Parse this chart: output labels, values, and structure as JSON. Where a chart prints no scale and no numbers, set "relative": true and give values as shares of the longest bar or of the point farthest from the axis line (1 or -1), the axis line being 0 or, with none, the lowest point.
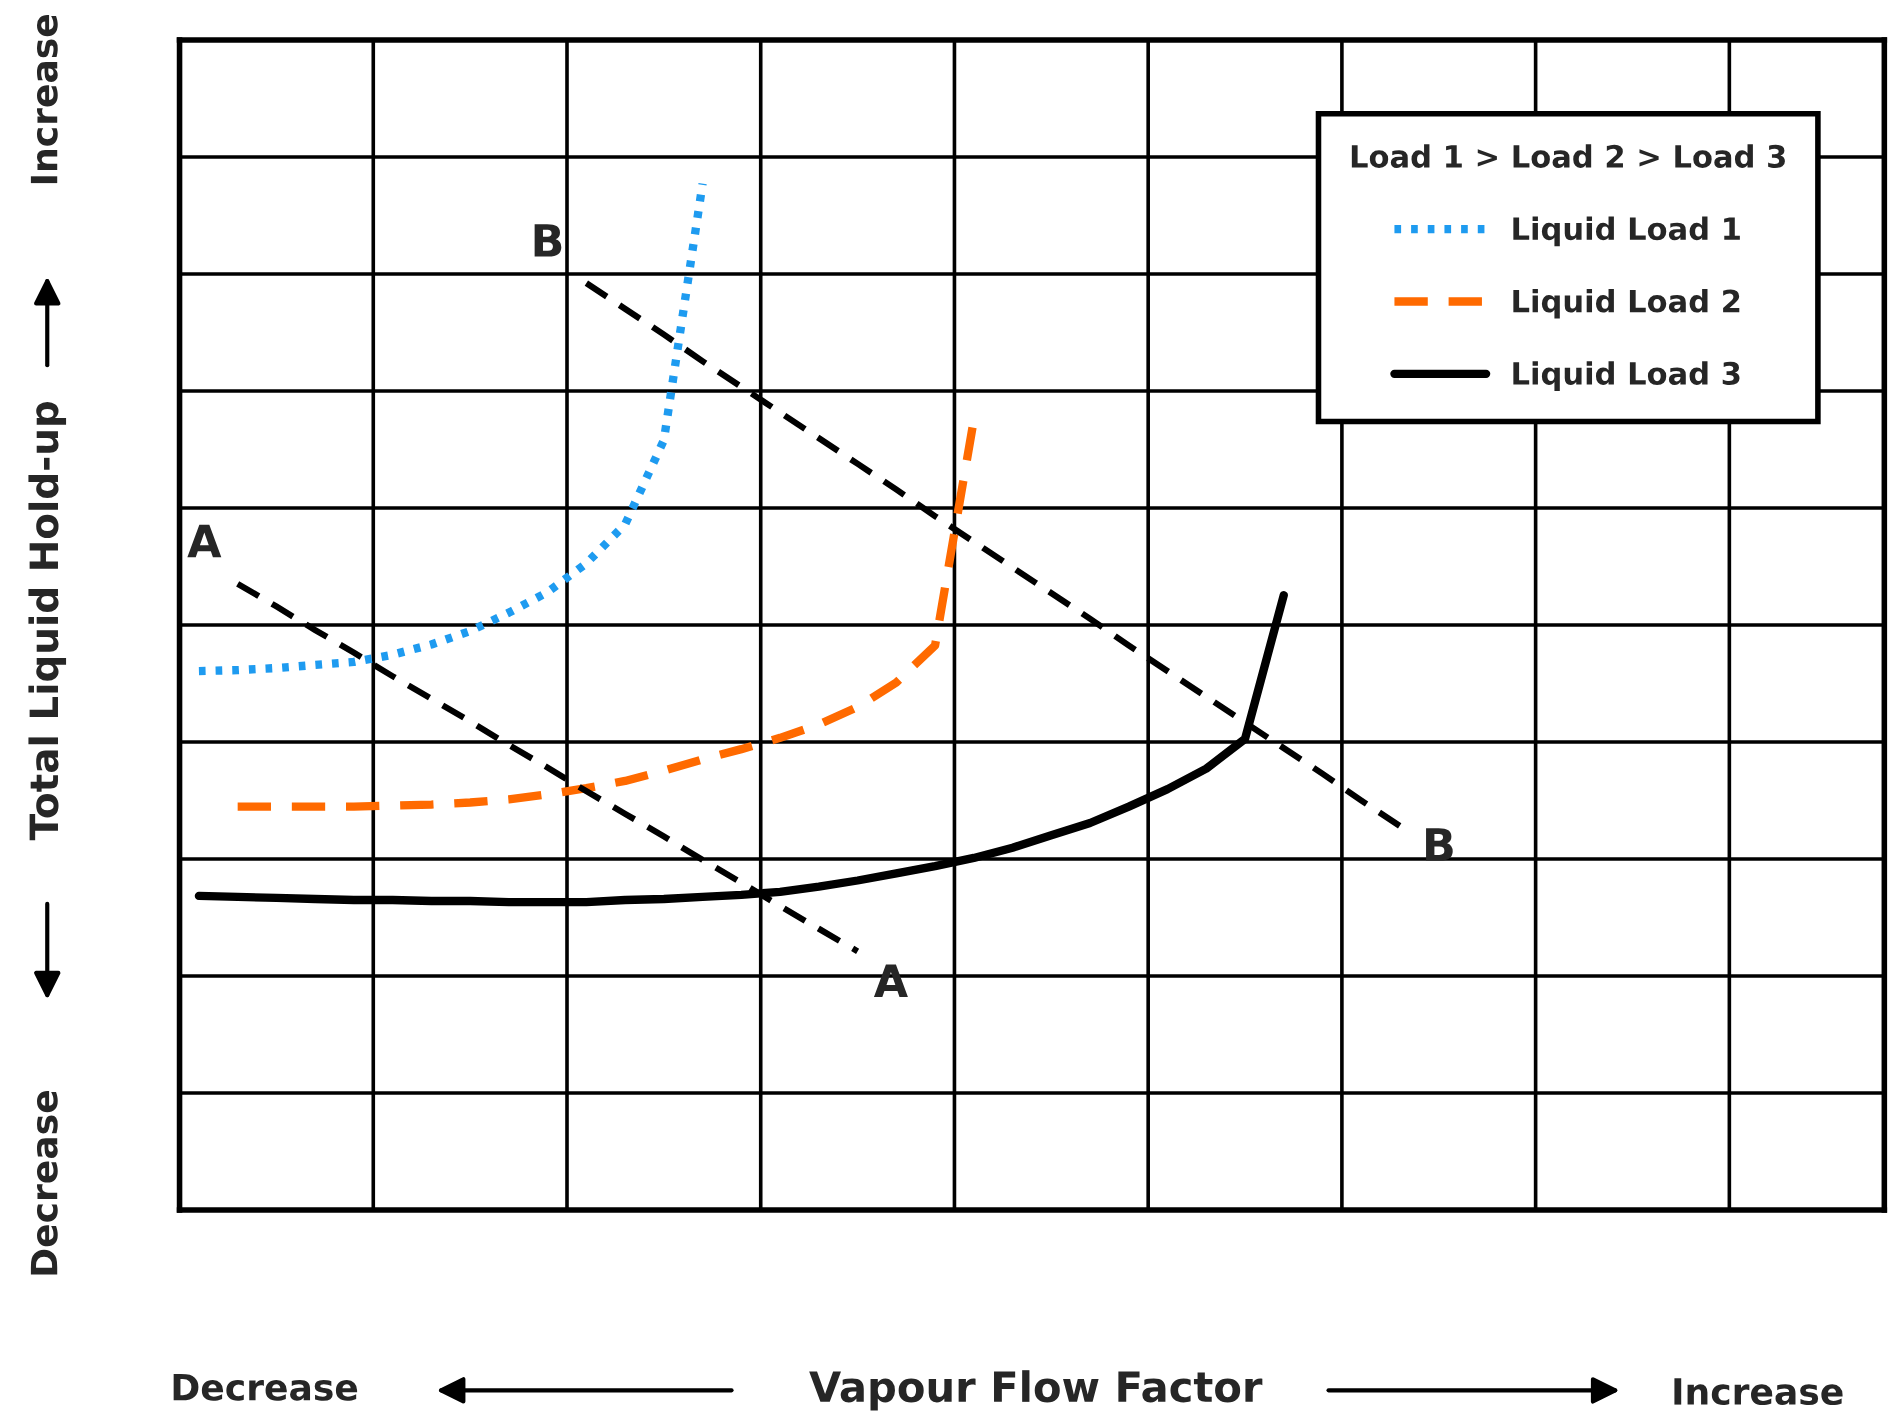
{
  "chart_data": {
    "type": "line",
    "relative": true,
    "xlabel": "Vapour Flow Factor",
    "ylabel": "Total Liquid Hold-up",
    "categories": [
      null,
      null,
      null,
      null,
      null,
      null,
      null,
      null,
      null,
      null,
      null,
      null,
      null,
      null,
      null,
      null,
      null,
      null,
      null,
      null,
      null,
      null,
      null,
      null,
      null,
      null,
      null,
      null,
      null,
      null,
      null,
      null,
      null,
      null,
      null,
      null,
      null,
      null,
      null,
      null,
      null,
      null,
      null,
      null
    ],
    "grid": true,
    "legend": "top right",
    "legend_title": "Load 1 > Load 2 > Load 3",
    "series": [
      {
        "name": "Liquid Load 1",
        "color": "#1e9bf0",
        "line_style": "dotted",
        "values": [
          0.525,
          0.526,
          0.528,
          0.531,
          0.534,
          0.541,
          0.551,
          0.564,
          0.582,
          0.602,
          0.63,
          0.668,
          0.75,
          1.0,
          null,
          null,
          null,
          null,
          null,
          null,
          null,
          null,
          null,
          null,
          null,
          null,
          null,
          null,
          null,
          null,
          null,
          null,
          null,
          null,
          null,
          null,
          null,
          null,
          null,
          null,
          null,
          null,
          null,
          null
        ]
      },
      {
        "name": "Liquid Load 2",
        "color": "#ff6a00",
        "line_style": "dashed",
        "values": [
          null,
          0.393,
          0.393,
          0.393,
          0.393,
          0.394,
          0.395,
          0.397,
          0.4,
          0.405,
          0.411,
          0.418,
          0.428,
          0.439,
          0.449,
          0.46,
          0.473,
          0.49,
          0.514,
          0.55,
          0.77,
          null,
          null,
          null,
          null,
          null,
          null,
          null,
          null,
          null,
          null,
          null,
          null,
          null,
          null,
          null,
          null,
          null,
          null,
          null,
          null,
          null,
          null,
          null
        ]
      },
      {
        "name": "Liquid Load 3",
        "color": "#000000",
        "line_style": "solid",
        "values": [
          0.306,
          0.305,
          0.304,
          0.303,
          0.302,
          0.302,
          0.301,
          0.301,
          0.3,
          0.3,
          0.3,
          0.302,
          0.303,
          0.305,
          0.307,
          0.31,
          0.315,
          0.321,
          0.328,
          0.335,
          0.343,
          0.353,
          0.365,
          0.377,
          0.393,
          0.41,
          0.43,
          0.459,
          0.599,
          null,
          null,
          null,
          null,
          null,
          null,
          null,
          null,
          null,
          null,
          null,
          null,
          null,
          null,
          null
        ]
      },
      {
        "color": "#000000",
        "line_style": "dashed",
        "values": [
          null,
          0.61,
          0.588,
          0.565,
          0.543,
          0.52,
          0.498,
          0.476,
          0.453,
          0.431,
          0.408,
          0.386,
          0.364,
          0.341,
          0.319,
          0.296,
          0.274,
          0.252,
          null,
          null,
          null,
          null,
          null,
          null,
          null,
          null,
          null,
          null,
          null,
          null,
          null,
          null,
          null,
          null,
          null,
          null,
          null,
          null,
          null,
          null,
          null,
          null,
          null,
          null
        ]
      },
      {
        "color": "#000000",
        "line_style": "dashed",
        "values": [
          null,
          null,
          null,
          null,
          null,
          null,
          null,
          null,
          null,
          null,
          0.903,
          0.878,
          0.853,
          0.827,
          0.802,
          0.777,
          0.752,
          0.727,
          0.702,
          0.676,
          0.651,
          0.626,
          0.601,
          0.576,
          0.55,
          0.525,
          0.5,
          0.475,
          0.45,
          0.425,
          0.399,
          0.374,
          null,
          null,
          null,
          null,
          null,
          null,
          null,
          null,
          null,
          null,
          null,
          null
        ]
      }
    ],
    "annotations": [
      "Decrease",
      "Increase",
      "Decrease",
      "Increase",
      "A",
      "A",
      "B",
      "B"
    ]
  }
}
